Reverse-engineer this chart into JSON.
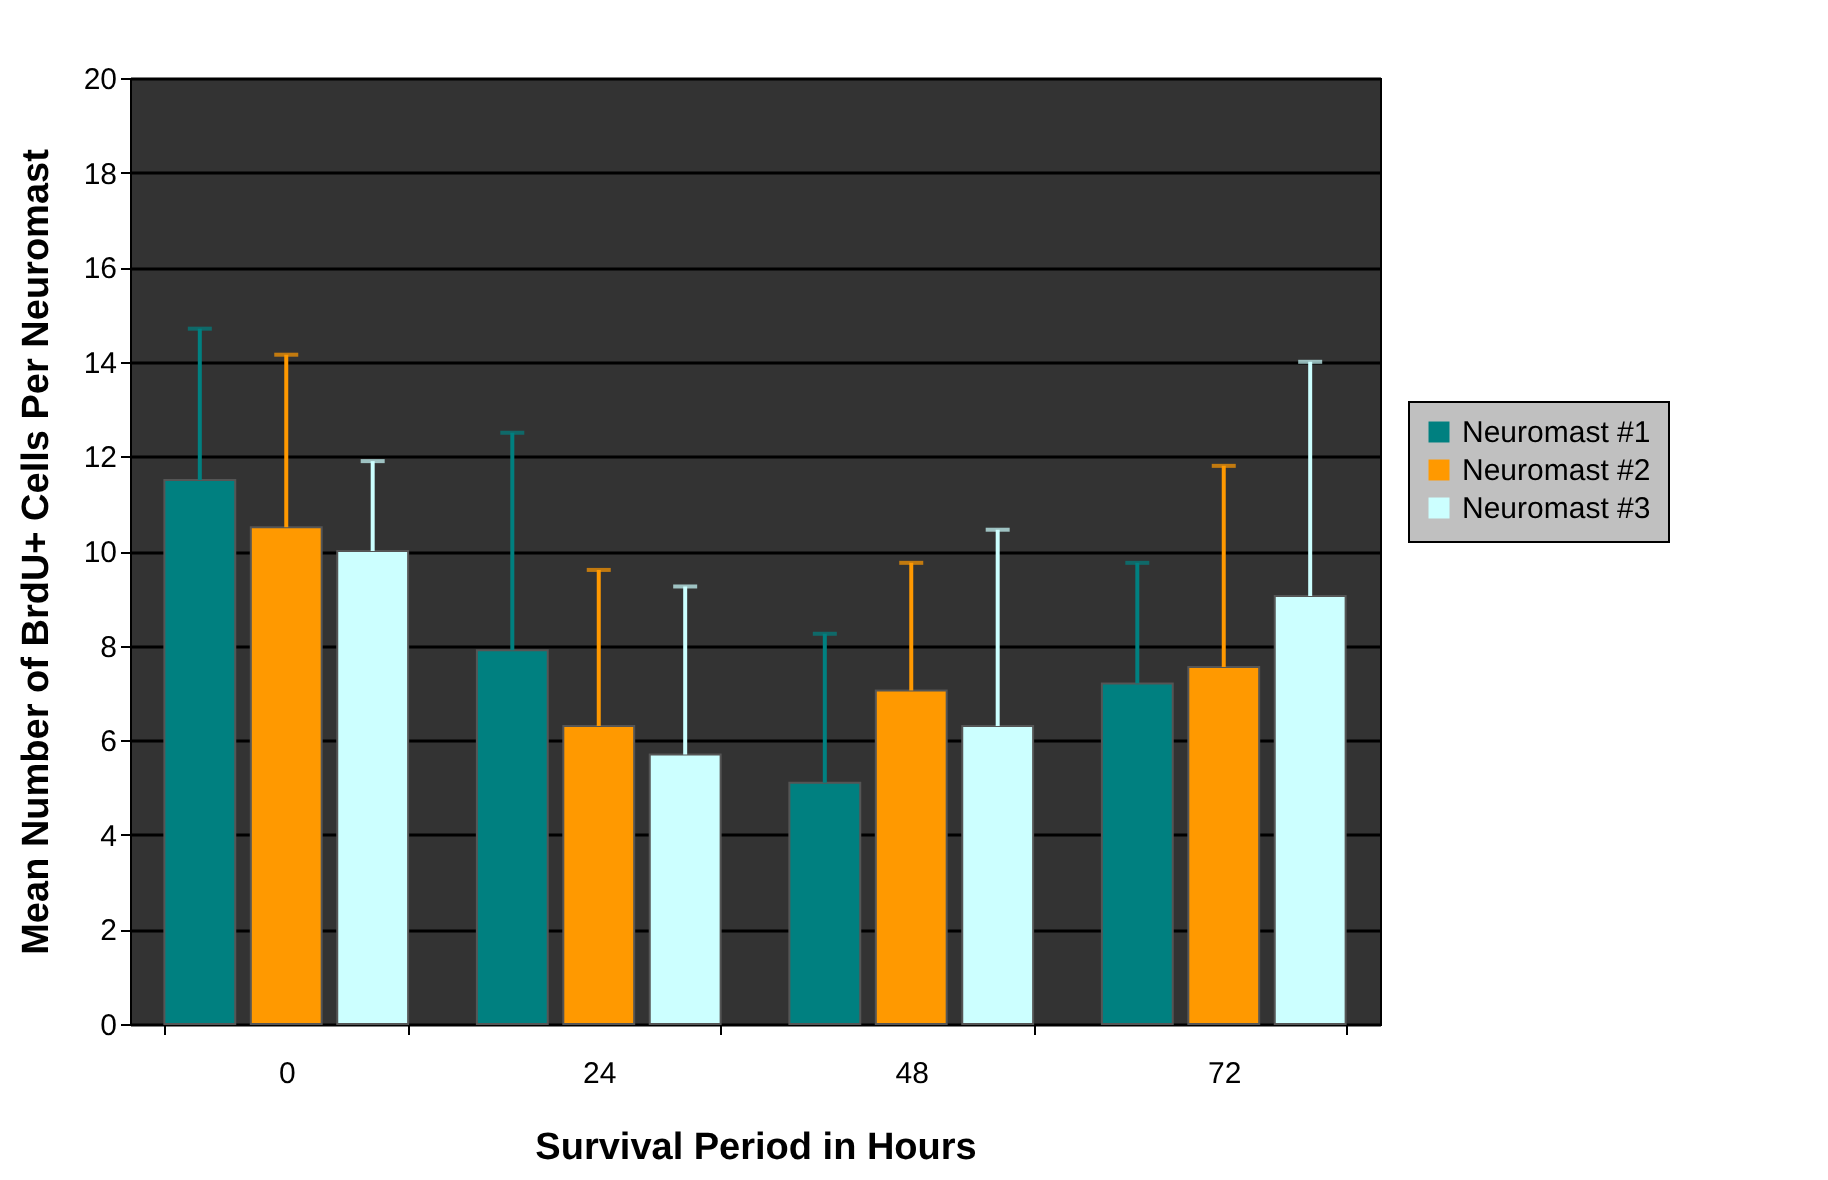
{
  "chart_data": {
    "type": "bar",
    "xlabel": "Survival Period in Hours",
    "ylabel": "Mean Number of BrdU+ Cells Per Neuromast",
    "categories": [
      "0",
      "24",
      "48",
      "72"
    ],
    "series": [
      {
        "name": "Neuromast #1",
        "color": "#008080",
        "values": [
          11.5,
          7.9,
          5.1,
          7.2
        ],
        "errors": [
          [
            11.5,
            14.7
          ],
          [
            7.9,
            12.5
          ],
          [
            5.1,
            8.25
          ],
          [
            7.2,
            9.75
          ]
        ]
      },
      {
        "name": "Neuromast #2",
        "color": "#ff9900",
        "values": [
          10.5,
          6.3,
          7.05,
          7.55
        ],
        "errors": [
          [
            10.5,
            14.15
          ],
          [
            6.3,
            9.6
          ],
          [
            7.05,
            9.75
          ],
          [
            7.55,
            11.8
          ]
        ]
      },
      {
        "name": "Neuromast #3",
        "color": "#ccffff",
        "values": [
          10,
          5.7,
          6.3,
          9.05
        ],
        "errors": [
          [
            10,
            11.9
          ],
          [
            5.7,
            9.25
          ],
          [
            6.3,
            10.45
          ],
          [
            9.05,
            14
          ]
        ]
      }
    ],
    "ylim": [
      0,
      20
    ],
    "yticks": [
      0,
      2,
      4,
      6,
      8,
      10,
      12,
      14,
      16,
      18,
      20
    ],
    "grid": "y",
    "legend": "right"
  }
}
